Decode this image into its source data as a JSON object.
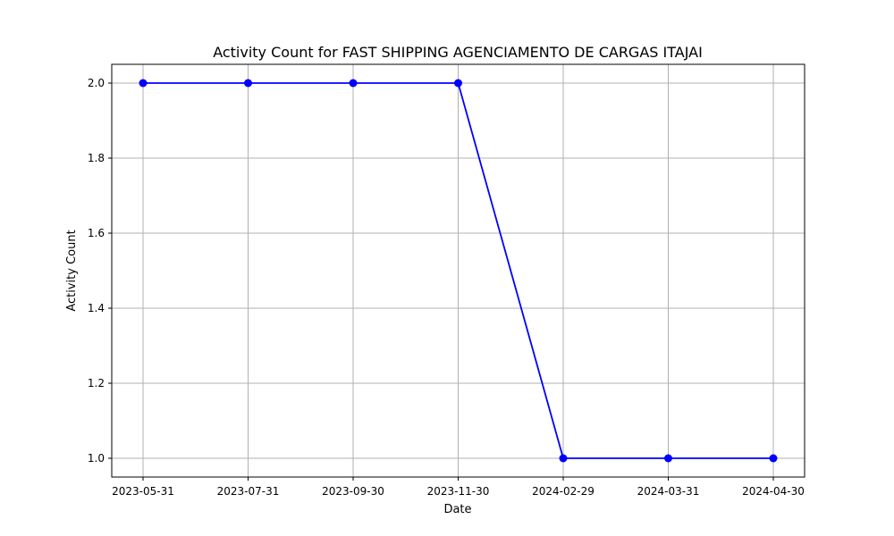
{
  "chart_data": {
    "type": "line",
    "title": "Activity Count for FAST SHIPPING AGENCIAMENTO DE CARGAS ITAJAI",
    "xlabel": "Date",
    "ylabel": "Activity Count",
    "x": [
      "2023-05-31",
      "2023-07-31",
      "2023-09-30",
      "2023-11-30",
      "2024-02-29",
      "2024-03-31",
      "2024-04-30"
    ],
    "series": [
      {
        "values": [
          2,
          2,
          2,
          2,
          1,
          1,
          1
        ],
        "color": "#0000ff",
        "marker": "circle"
      }
    ],
    "yticks": [
      "1.0",
      "1.2",
      "1.4",
      "1.6",
      "1.8",
      "2.0"
    ],
    "ylim": [
      0.95,
      2.05
    ],
    "grid": true,
    "legend": "none",
    "colors": {
      "line": "#0000ff",
      "grid": "#b0b0b0",
      "axes": "#000000"
    }
  }
}
